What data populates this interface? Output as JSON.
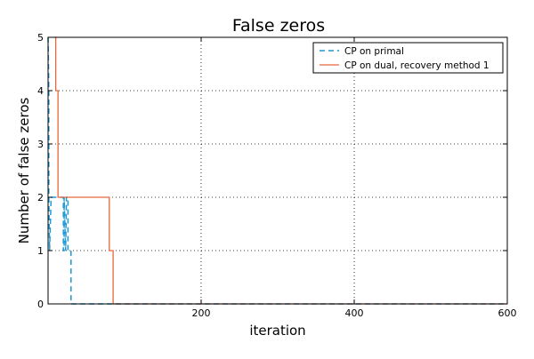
{
  "chart_data": {
    "type": "line",
    "title": "False zeros",
    "xlabel": "iteration",
    "ylabel": "Number of false zeros",
    "xlim": [
      0,
      600
    ],
    "ylim": [
      0,
      5
    ],
    "xticks": [
      200,
      400,
      600
    ],
    "yticks": [
      0,
      1,
      2,
      3,
      4,
      5
    ],
    "grid": true,
    "legend_position": "top-right",
    "series": [
      {
        "name": "CP on primal",
        "color": "#1f9ad6",
        "style": "dashed",
        "points": [
          [
            0,
            5
          ],
          [
            1,
            4
          ],
          [
            1,
            2
          ],
          [
            2,
            1
          ],
          [
            4,
            2
          ],
          [
            5,
            2
          ],
          [
            7,
            2
          ],
          [
            20,
            2
          ],
          [
            20,
            1
          ],
          [
            21,
            1
          ],
          [
            21,
            2
          ],
          [
            23,
            1
          ],
          [
            24,
            2
          ],
          [
            26,
            2
          ],
          [
            26,
            1
          ],
          [
            30,
            1
          ],
          [
            30,
            0
          ],
          [
            600,
            0
          ]
        ]
      },
      {
        "name": "CP on dual, recovery method 1",
        "color": "#e8693c",
        "style": "solid",
        "points": [
          [
            8,
            5
          ],
          [
            10,
            5
          ],
          [
            10,
            4
          ],
          [
            13,
            4
          ],
          [
            13,
            2
          ],
          [
            80,
            2
          ],
          [
            80,
            1
          ],
          [
            85,
            1
          ],
          [
            85,
            0
          ],
          [
            600,
            0
          ]
        ]
      }
    ]
  }
}
